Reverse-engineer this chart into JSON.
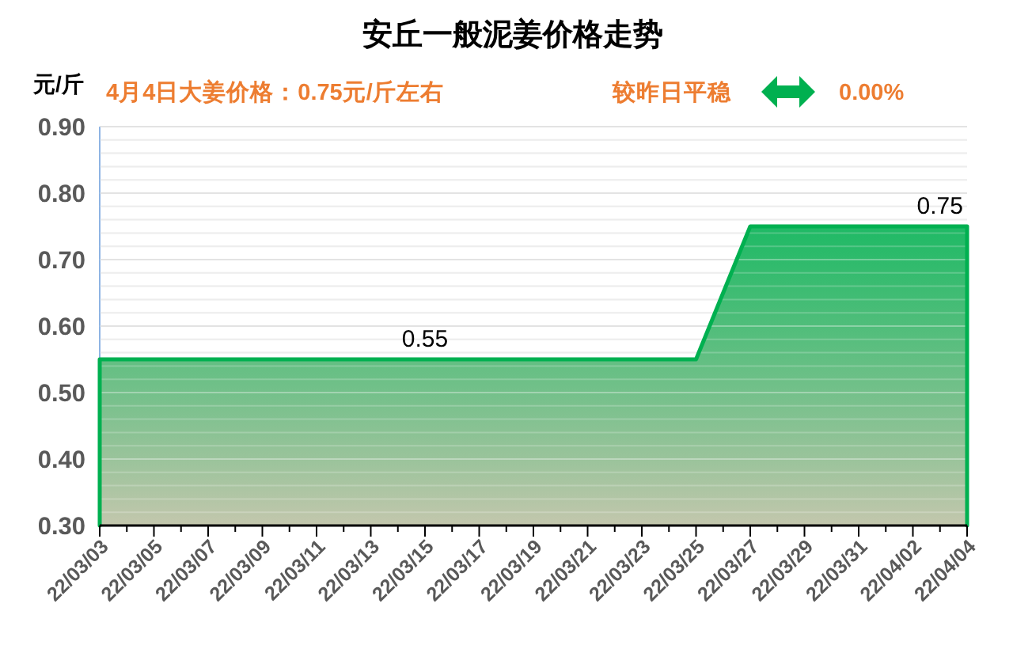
{
  "chart_data": {
    "type": "area",
    "title": "安丘一般泥姜价格走势",
    "ylabel": "元/斤",
    "annotations": [
      "4月4日大姜价格：0.75元/斤左右",
      "较昨日平稳",
      "0.00%",
      {
        "text": "0.55",
        "x": "--03-15",
        "y": 0.55
      },
      {
        "text": "0.75",
        "x": "--04-03",
        "y": 0.75
      }
    ],
    "x": [
      "--03-03",
      "--03-04",
      "--03-05",
      "--03-06",
      "--03-07",
      "--03-08",
      "--03-09",
      "--03-10",
      "--03-11",
      "--03-12",
      "--03-13",
      "--03-14",
      "--03-15",
      "--03-16",
      "--03-17",
      "--03-18",
      "--03-19",
      "--03-20",
      "--03-21",
      "--03-22",
      "--03-23",
      "--03-24",
      "--03-25",
      "--03-26",
      "--03-27",
      "--03-28",
      "--03-29",
      "--03-30",
      "--03-31",
      "--04-01",
      "--04-02",
      "--04-03",
      "--04-04"
    ],
    "values": [
      0.55,
      0.55,
      0.55,
      0.55,
      0.55,
      0.55,
      0.55,
      0.55,
      0.55,
      0.55,
      0.55,
      0.55,
      0.55,
      0.55,
      0.55,
      0.55,
      0.55,
      0.55,
      0.55,
      0.55,
      0.55,
      0.55,
      0.55,
      0.65,
      0.75,
      0.75,
      0.75,
      0.75,
      0.75,
      0.75,
      0.75,
      0.75,
      0.75
    ],
    "color": "#00b050",
    "xlim": [
      "--03-03",
      "--04-04"
    ],
    "xticks": [
      {
        "value": "--03-03",
        "label": "22/03/03"
      },
      {
        "value": "--03-04",
        "label": null
      },
      {
        "value": "--03-05",
        "label": "22/03/05"
      },
      {
        "value": "--03-06",
        "label": null
      },
      {
        "value": "--03-07",
        "label": "22/03/07"
      },
      {
        "value": "--03-08",
        "label": null
      },
      {
        "value": "--03-09",
        "label": "22/03/09"
      },
      {
        "value": "--03-10",
        "label": null
      },
      {
        "value": "--03-11",
        "label": "22/03/11"
      },
      {
        "value": "--03-12",
        "label": null
      },
      {
        "value": "--03-13",
        "label": "22/03/13"
      },
      {
        "value": "--03-14",
        "label": null
      },
      {
        "value": "--03-15",
        "label": "22/03/15"
      },
      {
        "value": "--03-16",
        "label": null
      },
      {
        "value": "--03-17",
        "label": "22/03/17"
      },
      {
        "value": "--03-18",
        "label": null
      },
      {
        "value": "--03-19",
        "label": "22/03/19"
      },
      {
        "value": "--03-20",
        "label": null
      },
      {
        "value": "--03-21",
        "label": "22/03/21"
      },
      {
        "value": "--03-22",
        "label": null
      },
      {
        "value": "--03-23",
        "label": "22/03/23"
      },
      {
        "value": "--03-24",
        "label": null
      },
      {
        "value": "--03-25",
        "label": "22/03/25"
      },
      {
        "value": "--03-26",
        "label": null
      },
      {
        "value": "--03-27",
        "label": "22/03/27"
      },
      {
        "value": "--03-28",
        "label": null
      },
      {
        "value": "--03-29",
        "label": "22/03/29"
      },
      {
        "value": "--03-30",
        "label": null
      },
      {
        "value": "--03-31",
        "label": "22/03/31"
      },
      {
        "value": "--04-01",
        "label": null
      },
      {
        "value": "--04-02",
        "label": "22/04/02"
      },
      {
        "value": "--04-03",
        "label": null
      },
      {
        "value": "--04-04",
        "label": "22/04/04"
      }
    ],
    "ylim": [
      0.3,
      0.9
    ],
    "yticks": [
      {
        "value": 0.3,
        "label": "0.30"
      },
      {
        "value": 0.32,
        "label": null
      },
      {
        "value": 0.34,
        "label": null
      },
      {
        "value": 0.36,
        "label": null
      },
      {
        "value": 0.38,
        "label": null
      },
      {
        "value": 0.4,
        "label": "0.40"
      },
      {
        "value": 0.42,
        "label": null
      },
      {
        "value": 0.44,
        "label": null
      },
      {
        "value": 0.46,
        "label": null
      },
      {
        "value": 0.48,
        "label": null
      },
      {
        "value": 0.5,
        "label": "0.50"
      },
      {
        "value": 0.52,
        "label": null
      },
      {
        "value": 0.54,
        "label": null
      },
      {
        "value": 0.56,
        "label": null
      },
      {
        "value": 0.58,
        "label": null
      },
      {
        "value": 0.6,
        "label": "0.60"
      },
      {
        "value": 0.62,
        "label": null
      },
      {
        "value": 0.64,
        "label": null
      },
      {
        "value": 0.66,
        "label": null
      },
      {
        "value": 0.68,
        "label": null
      },
      {
        "value": 0.7,
        "label": "0.70"
      },
      {
        "value": 0.72,
        "label": null
      },
      {
        "value": 0.74,
        "label": null
      },
      {
        "value": 0.76,
        "label": null
      },
      {
        "value": 0.78,
        "label": null
      },
      {
        "value": 0.8,
        "label": "0.80"
      },
      {
        "value": 0.82,
        "label": null
      },
      {
        "value": 0.84,
        "label": null
      },
      {
        "value": 0.86,
        "label": null
      },
      {
        "value": 0.88,
        "label": null
      },
      {
        "value": 0.9,
        "label": "0.90"
      }
    ],
    "grid": "y"
  }
}
